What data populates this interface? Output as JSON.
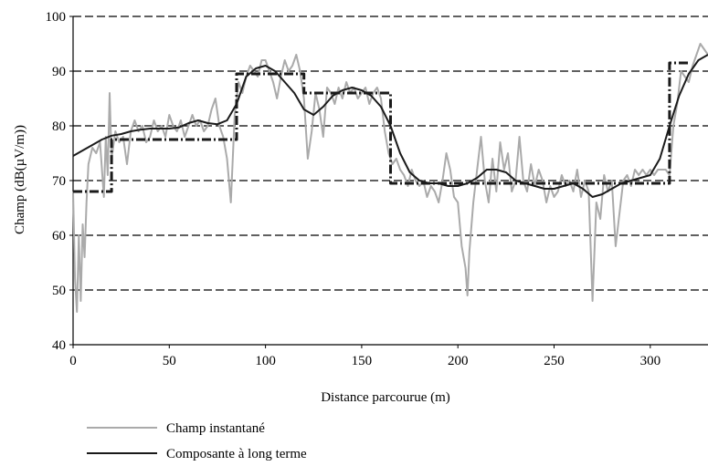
{
  "chart_data": {
    "type": "line",
    "xlabel": "Distance parcourue (m)",
    "ylabel": "Champ (dB(µV/m))",
    "xlim": [
      0,
      330
    ],
    "ylim": [
      40,
      100
    ],
    "xticks": [
      "0",
      "50",
      "100",
      "150",
      "200",
      "250",
      "300"
    ],
    "yticks": [
      "40",
      "50",
      "60",
      "70",
      "80",
      "90",
      "100"
    ],
    "grid": "horizontal dashed",
    "legend": "bottom-left, below plot",
    "colors": {
      "instant": "#aaaaaa",
      "longterm": "#1a1a1a",
      "step": "#1a1a1a",
      "grid": "#000000"
    },
    "series": [
      {
        "name": "Champ instantané",
        "style": "solid light grey",
        "x": [
          0,
          1,
          2,
          3,
          4,
          5,
          6,
          7,
          8,
          10,
          12,
          14,
          16,
          17,
          18,
          19,
          20,
          22,
          24,
          26,
          28,
          30,
          32,
          34,
          36,
          38,
          40,
          42,
          44,
          46,
          48,
          50,
          52,
          54,
          56,
          58,
          60,
          62,
          64,
          66,
          68,
          70,
          72,
          74,
          76,
          78,
          80,
          81,
          82,
          84,
          86,
          88,
          90,
          92,
          94,
          96,
          98,
          100,
          102,
          104,
          106,
          108,
          110,
          112,
          114,
          116,
          118,
          120,
          122,
          124,
          126,
          128,
          130,
          132,
          134,
          136,
          138,
          140,
          142,
          144,
          146,
          148,
          150,
          152,
          154,
          156,
          158,
          160,
          162,
          164,
          166,
          168,
          170,
          172,
          174,
          176,
          178,
          180,
          182,
          184,
          186,
          188,
          190,
          192,
          194,
          196,
          198,
          200,
          202,
          204,
          205,
          206,
          208,
          210,
          212,
          214,
          216,
          218,
          220,
          222,
          224,
          226,
          228,
          230,
          232,
          234,
          236,
          238,
          240,
          242,
          244,
          246,
          248,
          250,
          252,
          254,
          256,
          258,
          260,
          262,
          264,
          266,
          268,
          269,
          270,
          272,
          274,
          276,
          278,
          280,
          282,
          284,
          286,
          288,
          290,
          292,
          294,
          296,
          298,
          300,
          302,
          304,
          306,
          308,
          310,
          312,
          314,
          316,
          318,
          320,
          322,
          324,
          326,
          328,
          330
        ],
        "y": [
          68,
          52,
          46,
          60,
          48,
          62,
          56,
          66,
          73,
          76,
          75,
          77,
          67,
          78,
          71,
          86,
          74,
          79,
          77,
          78,
          73,
          79,
          81,
          79,
          80,
          77,
          78,
          81,
          79,
          80,
          78,
          82,
          80,
          79,
          81,
          78,
          80,
          82,
          80,
          81,
          79,
          80,
          83,
          85,
          80,
          78,
          74,
          70,
          66,
          82,
          88,
          86,
          89,
          91,
          90,
          89,
          92,
          92,
          90,
          88,
          85,
          89,
          92,
          90,
          91,
          93,
          90,
          85,
          74,
          79,
          86,
          83,
          78,
          87,
          86,
          84,
          87,
          85,
          88,
          86,
          87,
          85,
          86,
          87,
          84,
          86,
          87,
          85,
          79,
          75,
          73,
          74,
          72,
          71,
          69,
          72,
          70,
          69,
          70,
          67,
          69,
          68,
          66,
          70,
          75,
          72,
          67,
          66,
          58,
          54,
          49,
          57,
          66,
          72,
          78,
          70,
          66,
          74,
          68,
          77,
          72,
          75,
          68,
          70,
          78,
          70,
          68,
          73,
          69,
          72,
          70,
          66,
          69,
          67,
          68,
          71,
          69,
          70,
          68,
          72,
          67,
          70,
          68,
          58,
          48,
          66,
          63,
          71,
          68,
          70,
          58,
          64,
          70,
          71,
          69,
          72,
          71,
          72,
          71,
          72,
          71,
          72,
          72,
          72,
          71,
          80,
          84,
          90,
          89,
          88,
          91,
          93,
          95,
          94,
          93
        ]
      },
      {
        "name": "Composante à long terme",
        "style": "solid dark",
        "x": [
          0,
          5,
          10,
          15,
          20,
          25,
          30,
          35,
          40,
          45,
          50,
          55,
          60,
          65,
          70,
          75,
          80,
          85,
          90,
          95,
          100,
          105,
          110,
          115,
          120,
          125,
          130,
          135,
          140,
          145,
          150,
          155,
          160,
          165,
          170,
          175,
          180,
          185,
          190,
          195,
          200,
          205,
          210,
          215,
          220,
          225,
          230,
          235,
          240,
          245,
          250,
          255,
          260,
          265,
          270,
          275,
          280,
          285,
          290,
          295,
          300,
          305,
          310,
          315,
          320,
          325,
          330
        ],
        "y": [
          74.5,
          75.5,
          76.5,
          77.5,
          78.2,
          78.5,
          79,
          79.3,
          79.5,
          79.5,
          79.5,
          79.7,
          80.5,
          81,
          80.5,
          80.3,
          81,
          84,
          89,
          90.5,
          91,
          90,
          88,
          86,
          83,
          82,
          83.5,
          85.5,
          86.5,
          87,
          86.5,
          85.5,
          83.5,
          80,
          75,
          71.5,
          70,
          69.5,
          69.5,
          69,
          69,
          69.5,
          70.5,
          72,
          72,
          71.5,
          70,
          69.5,
          69,
          68.5,
          68.5,
          69,
          69.5,
          68.5,
          67,
          67.5,
          68.5,
          69.5,
          70,
          70.5,
          71,
          74,
          80,
          85.5,
          89.5,
          92,
          93
        ]
      },
      {
        "name": "",
        "style": "dash-dot step",
        "x": [
          0,
          10,
          10,
          20,
          20,
          35,
          35,
          85,
          85,
          120,
          120,
          165,
          165,
          200,
          200,
          310,
          310,
          320
        ],
        "y": [
          68,
          68,
          68,
          68,
          77.5,
          77.5,
          77.5,
          77.5,
          89.5,
          89.5,
          86,
          86,
          69.5,
          69.5,
          69.5,
          69.5,
          91.5,
          91.5
        ]
      }
    ]
  },
  "legend": {
    "items": [
      {
        "label": "Champ instantané",
        "color": "#aaaaaa"
      },
      {
        "label": "Composante à long terme",
        "color": "#1a1a1a"
      }
    ]
  }
}
